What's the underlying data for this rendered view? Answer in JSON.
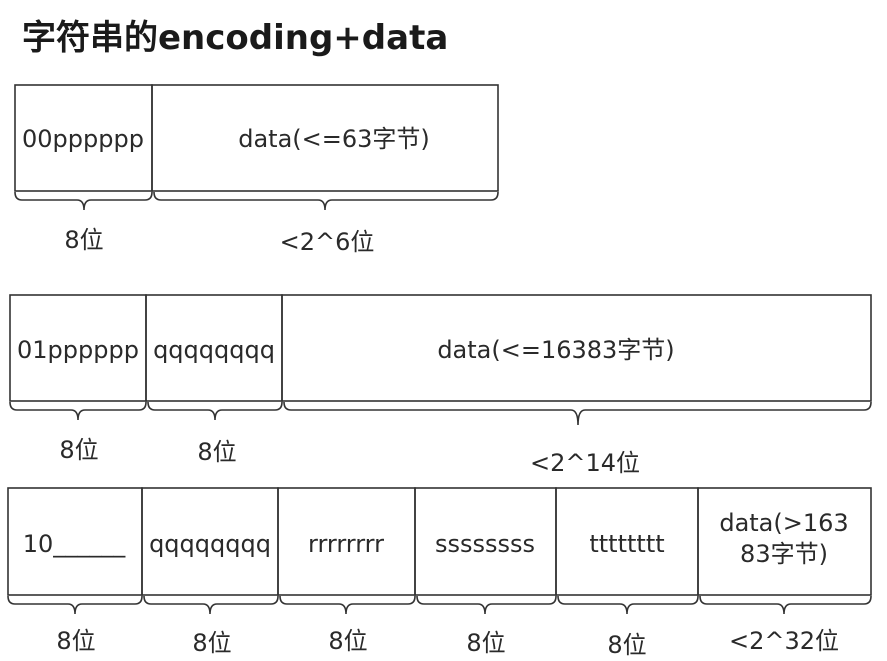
{
  "title": "字符串的encoding+data",
  "rows": [
    {
      "cells": [
        "00pppppp",
        "data(<=63字节)"
      ],
      "braces": [
        "8位",
        "<2^6位"
      ]
    },
    {
      "cells": [
        "01pppppp",
        "qqqqqqqq",
        "data(<=16383字节)"
      ],
      "braces": [
        "8位",
        "8位",
        "<2^14位"
      ]
    },
    {
      "cells": [
        "10______",
        "qqqqqqqq",
        "rrrrrrrr",
        "ssssssss",
        "tttttttt",
        "data(>163\n83字节)"
      ],
      "braces": [
        "8位",
        "8位",
        "8位",
        "8位",
        "8位",
        "<2^32位"
      ]
    }
  ]
}
